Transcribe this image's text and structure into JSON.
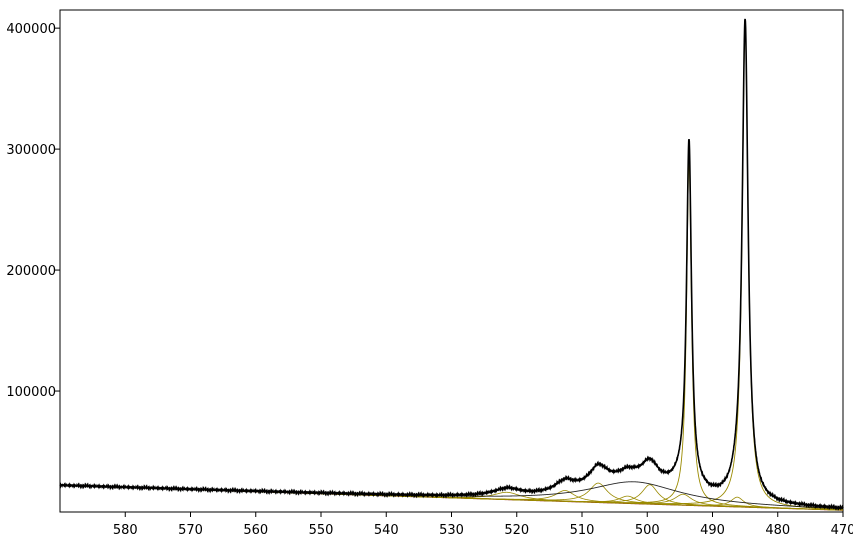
{
  "chart_data": {
    "type": "line",
    "title": "",
    "xlabel": "",
    "ylabel": "",
    "x_reversed": true,
    "xlim": [
      590,
      470
    ],
    "ylim": [
      0,
      415000
    ],
    "xticks": [
      580,
      570,
      560,
      550,
      540,
      530,
      520,
      510,
      500,
      490,
      480,
      470
    ],
    "xtick_labels": [
      "580",
      "570",
      "560",
      "550",
      "540",
      "530",
      "520",
      "510",
      "500",
      "490",
      "480",
      "470"
    ],
    "yticks": [
      100000,
      200000,
      300000,
      400000
    ],
    "ytick_labels": [
      "100000",
      "200000",
      "300000",
      "400000"
    ],
    "grid": false,
    "colors": {
      "measured": "#000000",
      "fit_envelope": "#000000",
      "components": "#9a8a00",
      "baseline": "#8b1a00"
    },
    "baseline": {
      "x": [
        590,
        470
      ],
      "y": [
        22000,
        1500
      ]
    },
    "components": [
      {
        "center": 485.0,
        "height": 395000,
        "width": 0.55
      },
      {
        "center": 493.6,
        "height": 284000,
        "width": 0.45
      },
      {
        "center": 486.2,
        "height": 8000,
        "width": 1.2
      },
      {
        "center": 494.5,
        "height": 9000,
        "width": 1.6
      },
      {
        "center": 499.6,
        "height": 16000,
        "width": 1.5
      },
      {
        "center": 503.0,
        "height": 6000,
        "width": 1.6
      },
      {
        "center": 507.5,
        "height": 16000,
        "width": 1.7
      },
      {
        "center": 512.6,
        "height": 9000,
        "width": 1.8
      },
      {
        "center": 521.5,
        "height": 6000,
        "width": 2.5
      },
      {
        "center": 502.0,
        "height": 18000,
        "width": 8.5
      }
    ],
    "broad_components": [
      0,
      1,
      9
    ]
  }
}
